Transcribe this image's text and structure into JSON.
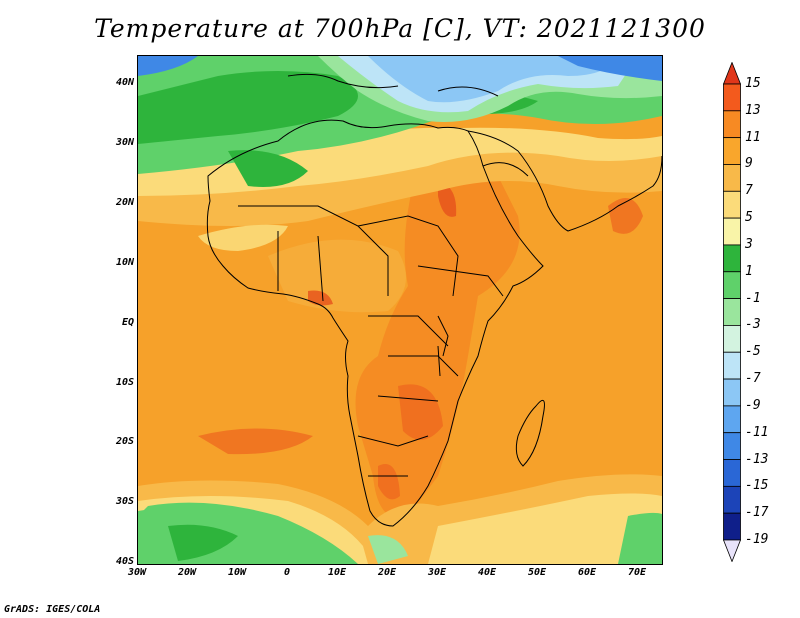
{
  "title": "Temperature at 700hPa [C], VT: 2021121300",
  "credit": "GrADS: IGES/COLA",
  "lat_labels": [
    "40N",
    "30N",
    "20N",
    "10N",
    "EQ",
    "10S",
    "20S",
    "30S",
    "40S"
  ],
  "lon_labels": [
    "30W",
    "20W",
    "10W",
    "0",
    "10E",
    "20E",
    "30E",
    "40E",
    "50E",
    "60E",
    "70E"
  ],
  "colorbar": {
    "labels": [
      "15",
      "13",
      "11",
      "9",
      "7",
      "5",
      "3",
      "1",
      "-1",
      "-3",
      "-5",
      "-7",
      "-9",
      "-11",
      "-13",
      "-15",
      "-17",
      "-19"
    ],
    "colors": [
      "#e0361a",
      "#f35a1d",
      "#f78a23",
      "#f9a62c",
      "#f8b949",
      "#fbdb7a",
      "#f9f4a8",
      "#2eb43c",
      "#5fd16a",
      "#9ae59d",
      "#d3f3e0",
      "#bde4f7",
      "#8cc7f5",
      "#5ea6f0",
      "#3f88e6",
      "#2a67d6",
      "#1c44b8",
      "#0f1f8a",
      "#e8e3fa"
    ]
  }
}
